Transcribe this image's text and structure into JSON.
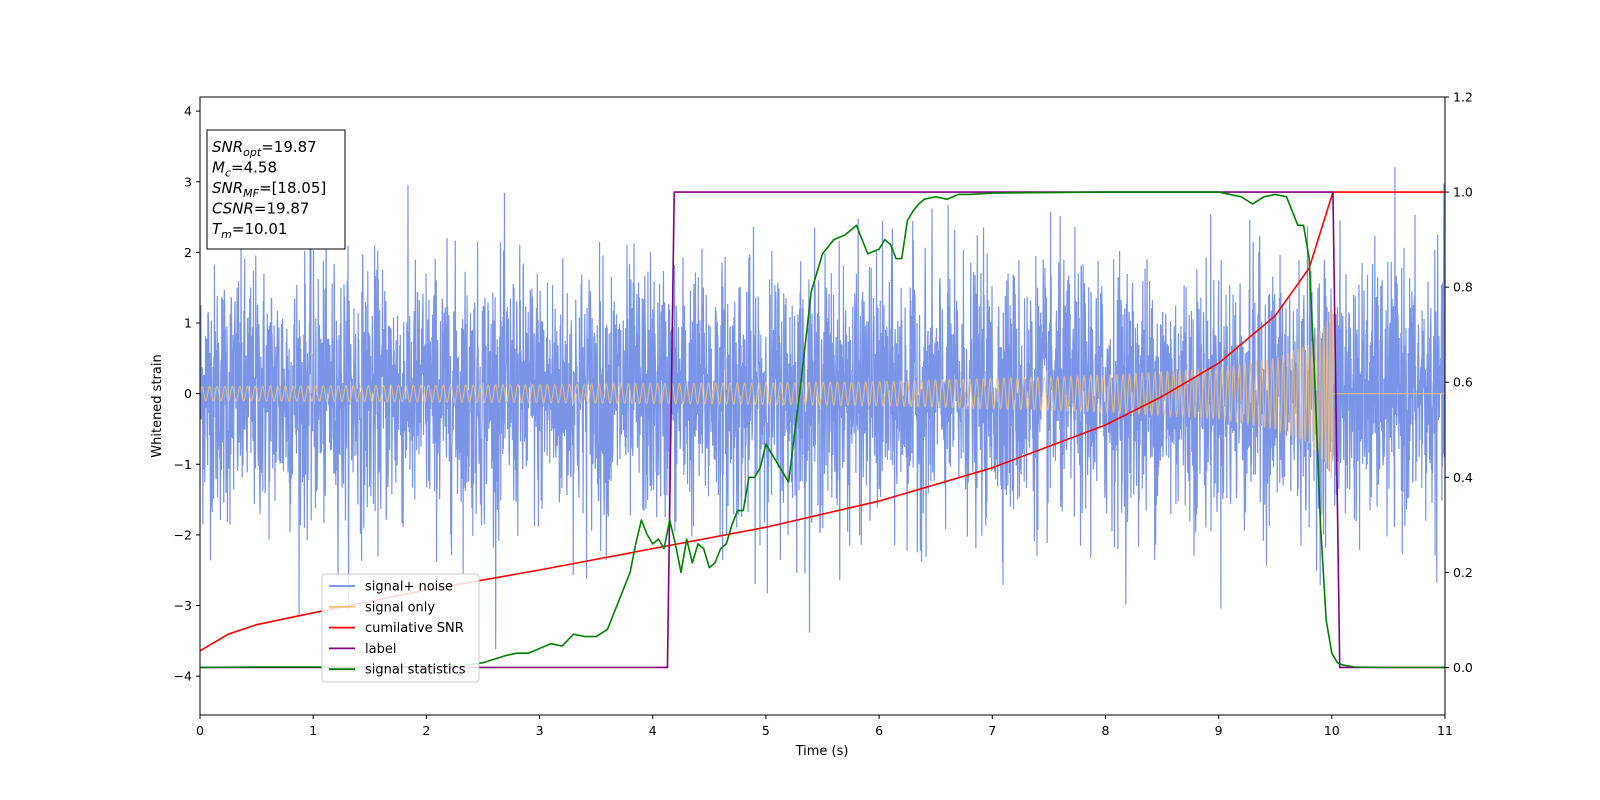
{
  "chart_data": {
    "type": "line",
    "title": "",
    "xlabel": "Time (s)",
    "ylabel": "Whitened strain",
    "y2label": "",
    "xlim": [
      0,
      11
    ],
    "ylim": [
      -4.55,
      4.2
    ],
    "y2lim": [
      -0.1,
      1.2
    ],
    "xticks": [
      0,
      1,
      2,
      3,
      4,
      5,
      6,
      7,
      8,
      9,
      10,
      11
    ],
    "yticks": [
      -4,
      -3,
      -2,
      -1,
      0,
      1,
      2,
      3,
      4
    ],
    "y2ticks": [
      "0.0",
      "0.2",
      "0.4",
      "0.6",
      "0.8",
      "1.0",
      "1.2"
    ],
    "grid": false,
    "legend_position": "lower-left",
    "info_box": {
      "lines": [
        {
          "sym": "SNR",
          "sub": "opt",
          "val": "=19.87"
        },
        {
          "sym": "M",
          "sub": "c",
          "val": "=4.58"
        },
        {
          "sym": "SNR",
          "sub": "MF",
          "val": "=[18.05]"
        },
        {
          "sym": "CSNR",
          "sub": "",
          "val": "=19.87"
        },
        {
          "sym": "T",
          "sub": "m",
          "val": "=10.01"
        }
      ]
    },
    "series": [
      {
        "name": "signal+ noise",
        "color": "#6b8ae6",
        "axis": "left",
        "description_values": {
          "approx_std": 0.9,
          "min": -4.15,
          "max": 3.82,
          "x_range": [
            0,
            11
          ]
        }
      },
      {
        "name": "signal only",
        "color": "#f5c27a",
        "axis": "left",
        "envelope": {
          "x": [
            0,
            2,
            4,
            6,
            8,
            9,
            9.5,
            9.8,
            9.95,
            10.01
          ],
          "amp": [
            0.1,
            0.12,
            0.14,
            0.17,
            0.26,
            0.36,
            0.5,
            0.7,
            1.0,
            1.3
          ]
        }
      },
      {
        "name": "cumilative SNR",
        "color": "#ff0000",
        "axis": "right",
        "x": [
          0,
          0.25,
          0.5,
          1,
          2,
          3,
          4,
          5,
          6,
          7,
          8,
          8.5,
          9,
          9.5,
          9.8,
          10.01,
          10.02,
          11
        ],
        "y": [
          0.035,
          0.07,
          0.09,
          0.115,
          0.163,
          0.205,
          0.25,
          0.295,
          0.35,
          0.42,
          0.51,
          0.57,
          0.64,
          0.74,
          0.84,
          1.0,
          1.0,
          1.0
        ]
      },
      {
        "name": "label",
        "color": "#800080",
        "axis": "right",
        "x": [
          0,
          4.13,
          4.19,
          10.01,
          10.07,
          11
        ],
        "y": [
          0,
          0,
          1,
          1,
          0,
          0
        ]
      },
      {
        "name": "signal statistics",
        "color": "#008000",
        "axis": "right",
        "x": [
          0,
          0.5,
          1,
          1.5,
          2,
          2.3,
          2.5,
          2.7,
          2.8,
          2.9,
          3.0,
          3.1,
          3.2,
          3.3,
          3.4,
          3.5,
          3.6,
          3.7,
          3.75,
          3.8,
          3.85,
          3.9,
          3.95,
          4.0,
          4.05,
          4.1,
          4.15,
          4.2,
          4.25,
          4.3,
          4.35,
          4.4,
          4.45,
          4.5,
          4.55,
          4.6,
          4.65,
          4.7,
          4.75,
          4.8,
          4.85,
          4.9,
          4.95,
          5.0,
          5.1,
          5.2,
          5.3,
          5.4,
          5.5,
          5.6,
          5.7,
          5.8,
          5.9,
          6.0,
          6.05,
          6.1,
          6.15,
          6.2,
          6.25,
          6.3,
          6.35,
          6.4,
          6.5,
          6.6,
          6.7,
          6.8,
          7.0,
          7.5,
          8.0,
          8.5,
          9.0,
          9.2,
          9.3,
          9.4,
          9.5,
          9.6,
          9.65,
          9.7,
          9.75,
          9.8,
          9.85,
          9.9,
          9.95,
          10.0,
          10.05,
          10.1,
          10.2,
          10.5,
          11
        ],
        "y": [
          0,
          0.001,
          0.001,
          0.001,
          0.002,
          0.003,
          0.01,
          0.025,
          0.03,
          0.03,
          0.04,
          0.05,
          0.045,
          0.07,
          0.065,
          0.065,
          0.08,
          0.14,
          0.17,
          0.2,
          0.26,
          0.31,
          0.28,
          0.26,
          0.27,
          0.25,
          0.31,
          0.26,
          0.2,
          0.27,
          0.22,
          0.26,
          0.25,
          0.21,
          0.22,
          0.25,
          0.26,
          0.3,
          0.33,
          0.33,
          0.4,
          0.4,
          0.42,
          0.47,
          0.43,
          0.39,
          0.58,
          0.79,
          0.87,
          0.9,
          0.91,
          0.93,
          0.87,
          0.88,
          0.9,
          0.89,
          0.86,
          0.86,
          0.94,
          0.96,
          0.975,
          0.985,
          0.99,
          0.985,
          0.995,
          0.995,
          0.998,
          0.999,
          1.0,
          1.0,
          1.0,
          0.99,
          0.975,
          0.99,
          0.995,
          0.99,
          0.96,
          0.93,
          0.93,
          0.86,
          0.6,
          0.3,
          0.1,
          0.03,
          0.01,
          0.005,
          0.001,
          0,
          0
        ]
      }
    ]
  }
}
